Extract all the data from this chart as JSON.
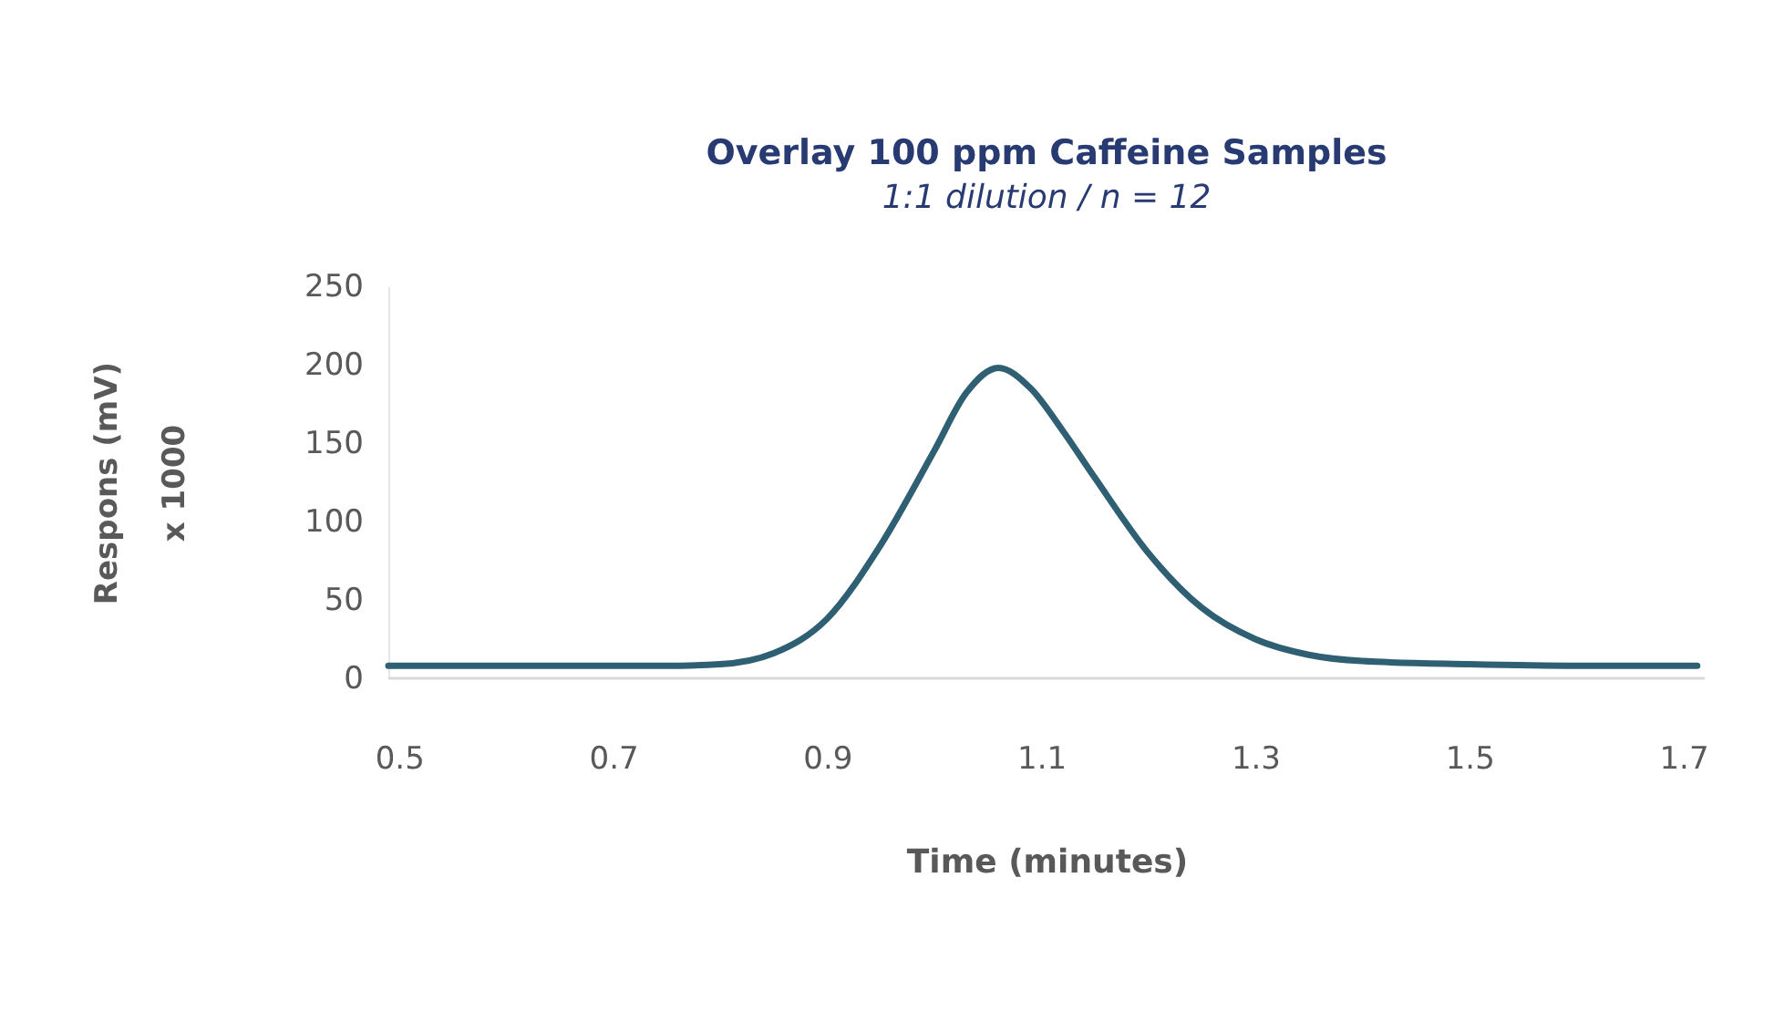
{
  "chart_data": {
    "type": "line",
    "title": "Overlay 100 ppm Caffeine Samples",
    "subtitle": "1:1 dilution / n = 12",
    "xlabel": "Time (minutes)",
    "ylabel": "Respons (mV)\nx 1000",
    "x": [
      0.49,
      0.75,
      0.8,
      0.85,
      0.9,
      0.95,
      1.0,
      1.03,
      1.06,
      1.09,
      1.12,
      1.15,
      1.2,
      1.25,
      1.3,
      1.35,
      1.4,
      1.5,
      1.6,
      1.713
    ],
    "series": [
      {
        "color": "#2f5f73",
        "values": [
          8,
          8,
          9,
          16,
          38,
          85,
          145,
          182,
          198,
          185,
          158,
          128,
          80,
          45,
          25,
          15,
          11,
          9,
          8,
          8
        ]
      }
    ],
    "xlim": [
      0.49,
      1.72
    ],
    "xticks": [
      0.5,
      0.7,
      0.9,
      1.1,
      1.3,
      1.5,
      1.7
    ],
    "ylim": [
      0,
      250
    ],
    "yticks": [
      0,
      50,
      100,
      150,
      200,
      250
    ],
    "grid": false,
    "marker": "none",
    "line_style": "solid"
  }
}
